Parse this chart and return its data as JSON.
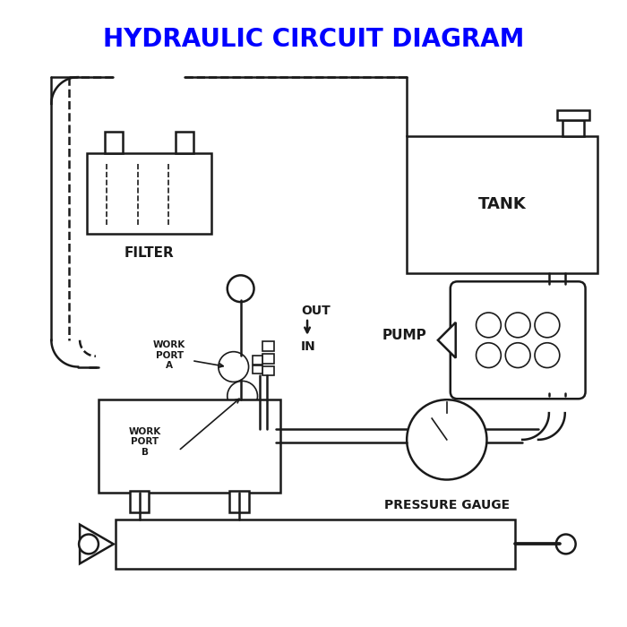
{
  "title": "HYDRAULIC CIRCUIT DIAGRAM",
  "title_color": "#0000FF",
  "title_fontsize": 20,
  "bg_color": "#FFFFFF",
  "line_color": "#1a1a1a",
  "lw": 1.8,
  "lw_thin": 1.2,
  "labels": {
    "tank": "TANK",
    "filter": "FILTER",
    "pump": "PUMP",
    "pressure_gauge": "PRESSURE GAUGE",
    "work_port_a": "WORK\nPORT\nA",
    "work_port_b": "WORK\nPORT\nB",
    "out": "OUT",
    "in": "IN"
  }
}
